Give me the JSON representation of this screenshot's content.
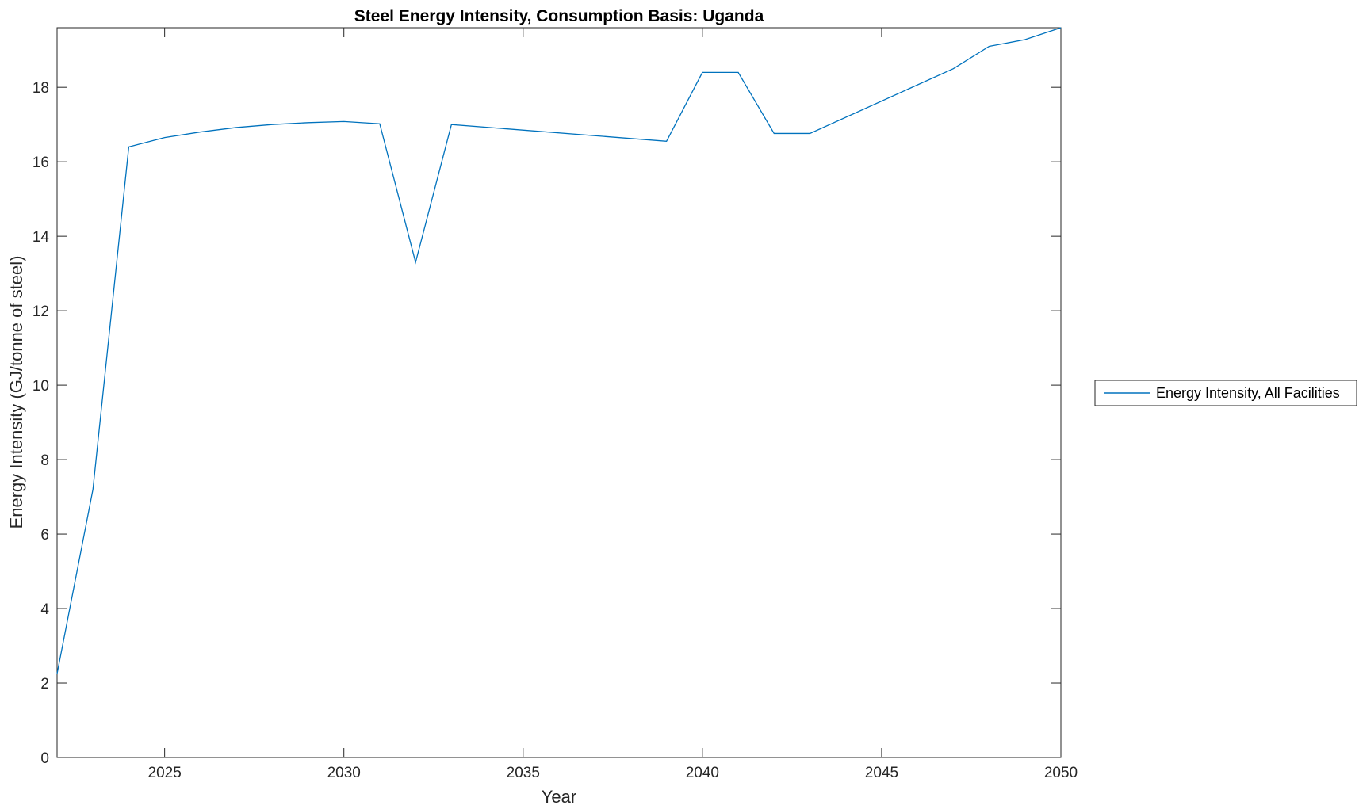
{
  "chart_data": {
    "type": "line",
    "title": "Steel Energy Intensity, Consumption Basis: Uganda",
    "xlabel": "Year",
    "ylabel": "Energy Intensity (GJ/tonne of steel)",
    "xlim": [
      2022,
      2050
    ],
    "ylim": [
      0,
      19.6
    ],
    "xticks": [
      2025,
      2030,
      2035,
      2040,
      2045,
      2050
    ],
    "yticks": [
      0,
      2,
      4,
      6,
      8,
      10,
      12,
      14,
      16,
      18
    ],
    "grid": false,
    "legend_position": "outside-right",
    "series": [
      {
        "name": "Energy Intensity, All Facilities",
        "color": "#0072BD",
        "x": [
          2022,
          2023,
          2024,
          2025,
          2026,
          2027,
          2028,
          2029,
          2030,
          2031,
          2032,
          2033,
          2039,
          2040,
          2041,
          2042,
          2043,
          2047,
          2048,
          2049,
          2050
        ],
        "y": [
          2.25,
          7.2,
          16.4,
          16.65,
          16.8,
          16.92,
          17.0,
          17.05,
          17.08,
          17.02,
          13.3,
          17.0,
          16.55,
          18.4,
          18.4,
          16.76,
          16.76,
          18.5,
          19.1,
          19.28,
          19.6
        ]
      }
    ]
  }
}
